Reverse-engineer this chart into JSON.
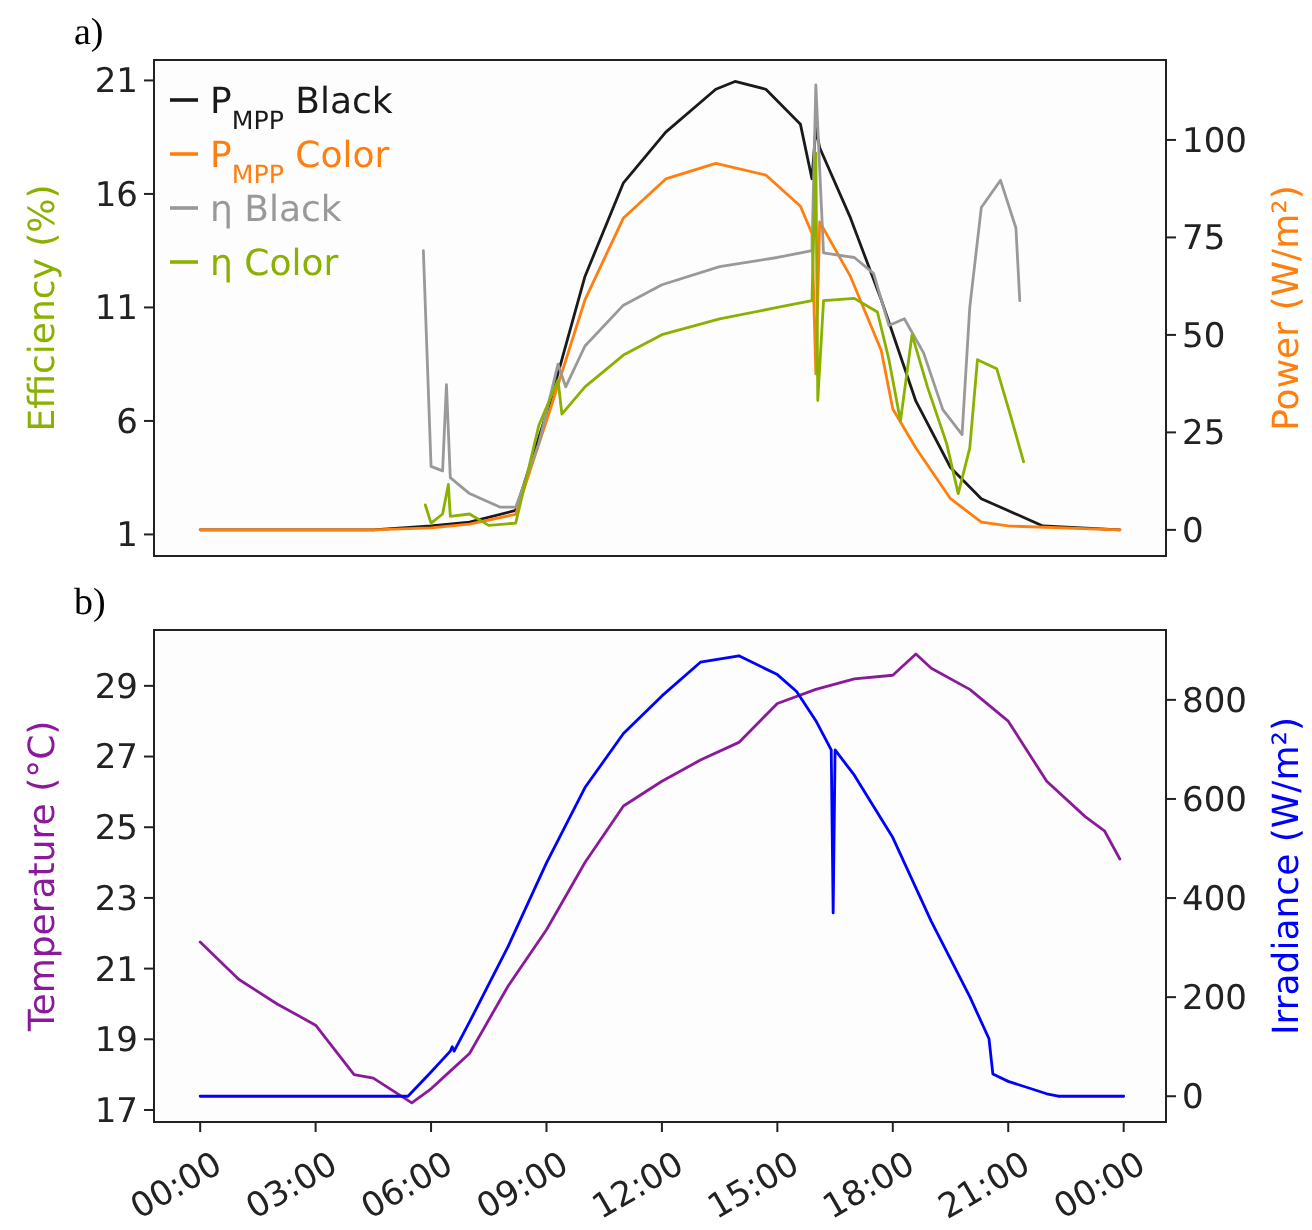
{
  "chart_data": [
    {
      "type": "line",
      "title": "a)",
      "ylabel": "Efficiency (%)",
      "y2label": "Power (W/m²)",
      "xlim": [
        -1.2,
        25.1
      ],
      "ylim": [
        0.05,
        21.9
      ],
      "yticks": [
        1,
        6,
        11,
        16,
        21
      ],
      "y2lim": [
        -6.7,
        120.5
      ],
      "y2ticks": [
        0,
        25,
        50,
        75,
        100
      ],
      "tick_labels": "y",
      "legend": "top left",
      "grid": false,
      "series": [
        {
          "name": "P$_{MPP}$ Black",
          "color": "#1a1a1a",
          "axis": "y2",
          "x": [
            0,
            4.5,
            6.0,
            7.0,
            8.2,
            9.1,
            10,
            11,
            12.1,
            13.4,
            13.9,
            14.7,
            15.6,
            15.9,
            16.0,
            16.1,
            16.9,
            17.7,
            18.6,
            19.5,
            20.3,
            21.9,
            23.9
          ],
          "values": [
            0,
            0,
            1,
            2,
            5,
            33,
            65,
            89,
            102,
            113,
            115,
            113,
            104,
            90,
            103,
            98,
            80,
            59,
            33,
            16,
            8,
            1,
            0
          ]
        },
        {
          "name": "P$_{MPP}$ Color",
          "color": "#ff7f0e",
          "axis": "y2",
          "x": [
            0,
            4.5,
            6.0,
            7.0,
            8.2,
            9.1,
            10,
            11,
            12.1,
            13.4,
            14.7,
            15.6,
            15.9,
            16.0,
            16.1,
            16.9,
            17.7,
            18.0,
            18.6,
            19.5,
            20.3,
            21,
            23.9
          ],
          "values": [
            0,
            0,
            0.5,
            1.5,
            4,
            31,
            59,
            80,
            90,
            94,
            91,
            83,
            76,
            40,
            79,
            65,
            46,
            31,
            21,
            8,
            2,
            1,
            0
          ]
        },
        {
          "name": "η Black",
          "color": "#999999",
          "axis": "y",
          "x": [
            5.8,
            6.0,
            6.3,
            6.4,
            6.5,
            7.0,
            7.8,
            8.2,
            8.8,
            9.3,
            9.5,
            10,
            11,
            12,
            13.5,
            15,
            15.9,
            16.0,
            16.2,
            17,
            17.5,
            17.9,
            18.3,
            18.8,
            19.3,
            19.8,
            20.0,
            20.3,
            20.8,
            21.2,
            21.3
          ],
          "values": [
            13.5,
            4,
            3.8,
            7.6,
            3.5,
            2.8,
            2.2,
            2.2,
            5,
            8.5,
            7.5,
            9.3,
            11.1,
            12,
            12.8,
            13.2,
            13.5,
            20.8,
            13.4,
            13.2,
            12.5,
            10.2,
            10.5,
            9,
            6.5,
            5.4,
            11,
            15.4,
            16.6,
            14.5,
            11.3
          ]
        },
        {
          "name": "η Color",
          "color": "#8ab000",
          "axis": "y",
          "x": [
            5.85,
            6.0,
            6.3,
            6.45,
            6.5,
            7.0,
            7.5,
            8.2,
            8.8,
            9.3,
            9.4,
            10,
            11,
            12,
            13.5,
            15,
            15.9,
            16.0,
            16.05,
            16.2,
            17,
            17.6,
            17.9,
            18.2,
            18.5,
            18.9,
            19.4,
            19.7,
            20.0,
            20.2,
            20.7,
            21.1,
            21.4
          ],
          "values": [
            2.3,
            1.5,
            1.9,
            3.2,
            1.8,
            1.9,
            1.4,
            1.5,
            5.8,
            7.8,
            6.3,
            7.5,
            8.9,
            9.8,
            10.5,
            11,
            11.3,
            17.8,
            6.9,
            11.3,
            11.4,
            10.8,
            8.7,
            6,
            9.8,
            7.5,
            5,
            2.8,
            4.8,
            8.7,
            8.3,
            6,
            4.2
          ]
        }
      ]
    },
    {
      "type": "line",
      "title": "b)",
      "ylabel": "Temperature (°C)",
      "y2label": "Irradiance (W/m²)",
      "xlim": [
        -1.2,
        25.1
      ],
      "xticks": [
        {
          "value": 0,
          "label": "00:00"
        },
        {
          "value": 3,
          "label": "03:00"
        },
        {
          "value": 6,
          "label": "06:00"
        },
        {
          "value": 9,
          "label": "09:00"
        },
        {
          "value": 12,
          "label": "12:00"
        },
        {
          "value": 15,
          "label": "15:00"
        },
        {
          "value": 18,
          "label": "18:00"
        },
        {
          "value": 21,
          "label": "21:00"
        },
        {
          "value": 24,
          "label": "00:00"
        }
      ],
      "ylim": [
        16.66,
        30.58
      ],
      "yticks": [
        17,
        19,
        21,
        23,
        25,
        27,
        29
      ],
      "y2lim": [
        -52,
        941
      ],
      "y2ticks": [
        0,
        200,
        400,
        600,
        800
      ],
      "grid": false,
      "series": [
        {
          "color": "#8b1a9b",
          "axis": "y",
          "x": [
            0,
            1,
            2,
            3,
            4,
            4.5,
            5.5,
            6,
            6.5,
            7,
            8,
            9,
            10,
            11,
            12,
            13,
            14,
            15,
            16,
            17,
            18,
            18.6,
            19,
            20,
            21,
            22,
            23,
            23.5,
            23.9
          ],
          "values": [
            21.75,
            20.7,
            20.0,
            19.4,
            18.0,
            17.9,
            17.2,
            17.6,
            18.1,
            18.6,
            20.5,
            22.1,
            24.0,
            25.6,
            26.3,
            26.9,
            27.4,
            28.5,
            28.9,
            29.2,
            29.3,
            29.9,
            29.5,
            28.9,
            28.0,
            26.3,
            25.3,
            24.9,
            24.1
          ]
        },
        {
          "color": "#0000ff",
          "axis": "y2",
          "x": [
            0,
            5.4,
            6,
            6.5,
            6.55,
            6.6,
            7,
            8,
            9,
            10,
            11,
            12,
            13,
            14,
            15,
            15.5,
            16,
            16.4,
            16.45,
            16.5,
            17,
            18,
            19,
            20,
            20.5,
            20.6,
            21,
            22,
            22.3,
            24
          ],
          "values": [
            0,
            0,
            49,
            91,
            100,
            91,
            150,
            302,
            471,
            623,
            732,
            808,
            876,
            889,
            851,
            817,
            758,
            699,
            370,
            699,
            648,
            522,
            353,
            201,
            116,
            45,
            30,
            5,
            0,
            0
          ]
        }
      ]
    }
  ]
}
